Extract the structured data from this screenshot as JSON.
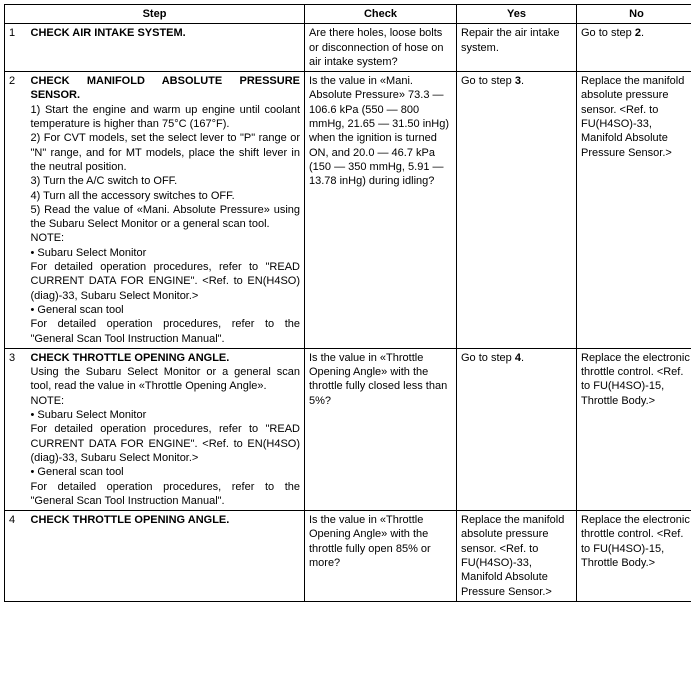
{
  "headers": {
    "step": "Step",
    "check": "Check",
    "yes": "Yes",
    "no": "No"
  },
  "rows": [
    {
      "num": "1",
      "title": "CHECK AIR INTAKE SYSTEM.",
      "body": "",
      "check": "Are there holes, loose bolts or disconnection of hose on air intake system?",
      "yes_pre": "Repair the air intake system.",
      "yes_bold": "",
      "yes_post": "",
      "no_pre": "Go to step ",
      "no_bold": "2",
      "no_post": "."
    },
    {
      "num": "2",
      "title": "CHECK MANIFOLD ABSOLUTE PRESSURE SENSOR.",
      "body": "1)  Start the engine and warm up engine until coolant temperature is higher than 75°C (167°F).\n2)  For CVT models, set the select lever to \"P\" range or \"N\" range, and for MT models, place the shift lever in the neutral position.\n3)  Turn the A/C switch to OFF.\n4)  Turn all the accessory switches to OFF.\n5)  Read the value of «Mani. Absolute Pressure» using the Subaru Select Monitor or a general scan tool.\nNOTE:\n•  Subaru Select Monitor\nFor detailed operation procedures, refer to \"READ CURRENT DATA FOR ENGINE\". <Ref. to EN(H4SO)(diag)-33, Subaru Select Monitor.>\n•  General scan tool\nFor detailed operation procedures, refer to the \"General Scan Tool Instruction Manual\".",
      "check": "Is the value in «Mani. Absolute Pressure» 73.3 — 106.6 kPa (550 — 800 mmHg, 21.65 — 31.50 inHg) when the ignition is turned ON, and 20.0 — 46.7 kPa (150 — 350 mmHg, 5.91 — 13.78 inHg) during idling?",
      "yes_pre": "Go to step ",
      "yes_bold": "3",
      "yes_post": ".",
      "no_pre": "Replace the manifold absolute pressure sensor. <Ref. to FU(H4SO)-33, Manifold Absolute Pressure Sensor.>",
      "no_bold": "",
      "no_post": ""
    },
    {
      "num": "3",
      "title": "CHECK THROTTLE OPENING ANGLE.",
      "body": "Using the Subaru Select Monitor or a general scan tool, read the value in «Throttle Opening Angle».\nNOTE:\n•  Subaru Select Monitor\nFor detailed operation procedures, refer to \"READ CURRENT DATA FOR ENGINE\". <Ref. to EN(H4SO)(diag)-33, Subaru Select Monitor.>\n•  General scan tool\nFor detailed operation procedures, refer to the \"General Scan Tool Instruction Manual\".",
      "check": "Is the value in «Throttle Opening Angle» with the throttle fully closed less than 5%?",
      "yes_pre": "Go to step ",
      "yes_bold": "4",
      "yes_post": ".",
      "no_pre": "Replace the electronic throttle control. <Ref. to FU(H4SO)-15, Throttle Body.>",
      "no_bold": "",
      "no_post": ""
    },
    {
      "num": "4",
      "title": "CHECK THROTTLE OPENING ANGLE.",
      "body": "",
      "check": "Is the value in «Throttle Opening Angle» with the throttle fully open 85% or more?",
      "yes_pre": "Replace the manifold absolute pressure sensor. <Ref. to FU(H4SO)-33, Manifold Absolute Pressure Sensor.>",
      "yes_bold": "",
      "yes_post": "",
      "no_pre": "Replace the electronic throttle control. <Ref. to FU(H4SO)-15, Throttle Body.>",
      "no_bold": "",
      "no_post": ""
    }
  ]
}
